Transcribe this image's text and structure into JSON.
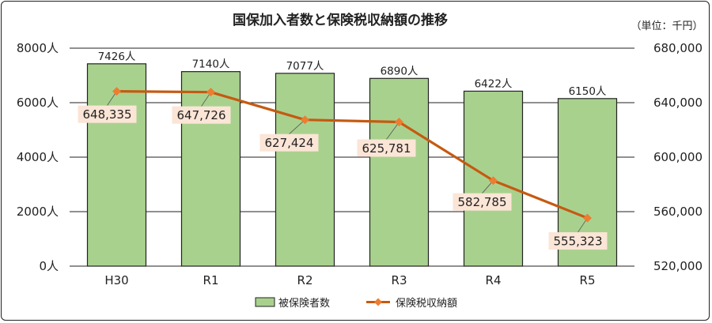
{
  "chart_data": {
    "type": "bar",
    "title": "国保加入者数と保険税収納額の推移",
    "unit_label": "（単位：千円）",
    "categories": [
      "H30",
      "R1",
      "R2",
      "R3",
      "R4",
      "R5"
    ],
    "series": [
      {
        "name": "被保険者数",
        "type": "bar",
        "axis": "left",
        "values": [
          7426,
          7140,
          7077,
          6890,
          6422,
          6150
        ],
        "labels": [
          "7426人",
          "7140人",
          "7077人",
          "6890人",
          "6422人",
          "6150人"
        ],
        "color": "#a9d18e"
      },
      {
        "name": "保険税収納額",
        "type": "line",
        "axis": "right",
        "values": [
          648335,
          647726,
          627424,
          625781,
          582785,
          555323
        ],
        "labels": [
          "648,335",
          "647,726",
          "627,424",
          "625,781",
          "582,785",
          "555,323"
        ],
        "color": "#c55a11"
      }
    ],
    "left_axis": {
      "min": 0,
      "max": 8000,
      "ticks": [
        0,
        2000,
        4000,
        6000,
        8000
      ],
      "tick_labels": [
        "0人",
        "2000人",
        "4000人",
        "6000人",
        "8000人"
      ]
    },
    "right_axis": {
      "min": 520000,
      "max": 680000,
      "ticks": [
        520000,
        560000,
        600000,
        640000,
        680000
      ],
      "tick_labels": [
        "520,000",
        "560,000",
        "600,000",
        "640,000",
        "680,000"
      ]
    },
    "grid": true,
    "legend_position": "bottom",
    "colors": {
      "bar_fill": "#a9d18e",
      "bar_stroke": "#222222",
      "line": "#c55a11",
      "marker": "#ed7d31",
      "label_box": "#fbe5d6",
      "grid": "#222222"
    }
  }
}
